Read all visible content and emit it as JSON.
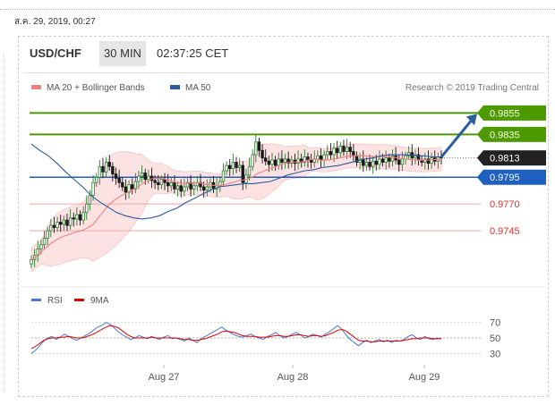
{
  "date_text": "ส.ค. 29, 2019, 00:27",
  "header": {
    "pair": "USD/CHF",
    "timeframe": "30 MIN",
    "clock": "02:37:25 CET"
  },
  "legend": {
    "ma20_label": "MA 20 + Bollinger Bands",
    "ma50_label": "MA 50",
    "research": "Research © 2019 Trading Central",
    "ma20_color": "#f08080",
    "ma50_color": "#2d5aa0"
  },
  "rsi_legend": {
    "rsi_label": "RSI",
    "ma_label": "9MA",
    "rsi_color": "#4a78d0",
    "ma_color": "#dd0000"
  },
  "colors": {
    "up": "#2e7d32",
    "down": "#1a1a1a",
    "green_level": "#4c9a00",
    "blue_level": "#1f5fbf",
    "red_level": "#e03030",
    "current": "#222222",
    "arrow": "#2a5ea0"
  },
  "chart_data": [
    {
      "type": "candlestick",
      "title": "USD/CHF 30 MIN",
      "x_labels": [
        "Aug 27",
        "Aug 28",
        "Aug 29"
      ],
      "ylim": [
        0.97,
        0.9862
      ],
      "levels": [
        {
          "value": 0.9855,
          "label": "0.9855",
          "kind": "resistance"
        },
        {
          "value": 0.9835,
          "label": "0.9835",
          "kind": "resistance"
        },
        {
          "value": 0.9813,
          "label": "0.9813",
          "kind": "current"
        },
        {
          "value": 0.9795,
          "label": "0.9795",
          "kind": "pivot"
        },
        {
          "value": 0.977,
          "label": "0.9770",
          "kind": "support"
        },
        {
          "value": 0.9745,
          "label": "0.9745",
          "kind": "support"
        }
      ],
      "close": [
        0.9718,
        0.9722,
        0.9728,
        0.9732,
        0.9738,
        0.9745,
        0.975,
        0.9748,
        0.9753,
        0.9751,
        0.9755,
        0.975,
        0.9757,
        0.9756,
        0.976,
        0.9755,
        0.9762,
        0.977,
        0.9778,
        0.979,
        0.9795,
        0.9805,
        0.98,
        0.9809,
        0.9805,
        0.9798,
        0.9794,
        0.979,
        0.9786,
        0.9781,
        0.9788,
        0.9784,
        0.9791,
        0.9796,
        0.9799,
        0.9793,
        0.9796,
        0.9792,
        0.979,
        0.9788,
        0.9793,
        0.979,
        0.9787,
        0.979,
        0.9784,
        0.9787,
        0.9782,
        0.9786,
        0.979,
        0.9784,
        0.9787,
        0.979,
        0.9786,
        0.9783,
        0.9786,
        0.979,
        0.9784,
        0.9787,
        0.9791,
        0.9801,
        0.9806,
        0.9803,
        0.9809,
        0.9804,
        0.9806,
        0.979,
        0.9797,
        0.9805,
        0.9816,
        0.9828,
        0.982,
        0.9813,
        0.981,
        0.9807,
        0.9811,
        0.9806,
        0.9812,
        0.9809,
        0.9812,
        0.9808,
        0.9811,
        0.9808,
        0.9812,
        0.9809,
        0.9814,
        0.9811,
        0.9809,
        0.9812,
        0.9815,
        0.9811,
        0.9816,
        0.9819,
        0.9816,
        0.9822,
        0.9818,
        0.9824,
        0.9819,
        0.9823,
        0.9819,
        0.9815,
        0.9809,
        0.9812,
        0.9806,
        0.9809,
        0.9805,
        0.981,
        0.9807,
        0.9812,
        0.9809,
        0.9813,
        0.981,
        0.9815,
        0.9811,
        0.9807,
        0.9812,
        0.9815,
        0.9818,
        0.9813,
        0.9816,
        0.9811,
        0.9809,
        0.9812,
        0.9808,
        0.9813,
        0.981,
        0.9814,
        0.9813
      ],
      "ma50": [
        0.9826,
        0.982,
        0.9815,
        0.9808,
        0.98,
        0.9793,
        0.9786,
        0.9778,
        0.9772,
        0.9767,
        0.9762,
        0.9759,
        0.9757,
        0.9756,
        0.9757,
        0.9759,
        0.9763,
        0.9766,
        0.9771,
        0.9775,
        0.9779,
        0.9783,
        0.9786,
        0.9787,
        0.9788,
        0.9789,
        0.9789,
        0.979,
        0.9791,
        0.9794,
        0.9797,
        0.9799,
        0.9801,
        0.9802,
        0.9804,
        0.9805,
        0.9806,
        0.9808,
        0.981,
        0.9812,
        0.9813,
        0.9815,
        0.9816,
        0.9816,
        0.9816,
        0.9815,
        0.9815,
        0.9814,
        0.9814
      ],
      "rsi_ylim": [
        20,
        80
      ],
      "rsi_ticks": [
        70,
        50,
        30
      ],
      "rsi": [
        30,
        34,
        40,
        46,
        50,
        52,
        48,
        51,
        55,
        52,
        49,
        47,
        50,
        53,
        56,
        60,
        64,
        66,
        70,
        68,
        63,
        58,
        54,
        51,
        48,
        50,
        53,
        51,
        49,
        52,
        50,
        48,
        51,
        53,
        49,
        50,
        48,
        46,
        50,
        47,
        44,
        49,
        52,
        55,
        58,
        61,
        64,
        60,
        57,
        54,
        52,
        51,
        53,
        55,
        52,
        50,
        48,
        52,
        54,
        57,
        53,
        50,
        52,
        55,
        57,
        54,
        50,
        52,
        55,
        53,
        51,
        55,
        58,
        62,
        66,
        61,
        54,
        48,
        44,
        40,
        44,
        47,
        44,
        46,
        48,
        45,
        47,
        44,
        47,
        46,
        48,
        52,
        54,
        50,
        48,
        52,
        49,
        48,
        50,
        49
      ],
      "rsi_ma": [
        36,
        39,
        43,
        47,
        49,
        50,
        50,
        51,
        51,
        52,
        51,
        50,
        50,
        51,
        53,
        55,
        58,
        61,
        64,
        66,
        65,
        63,
        59,
        55,
        52,
        50,
        50,
        50,
        50,
        51,
        50,
        50,
        50,
        50,
        50,
        50,
        49,
        48,
        48,
        47,
        47,
        48,
        49,
        51,
        53,
        55,
        58,
        59,
        58,
        57,
        55,
        53,
        52,
        52,
        52,
        51,
        51,
        51,
        52,
        53,
        53,
        52,
        52,
        53,
        54,
        54,
        53,
        52,
        53,
        53,
        52,
        53,
        55,
        57,
        60,
        61,
        59,
        55,
        51,
        47,
        46,
        46,
        45,
        45,
        46,
        46,
        46,
        46,
        46,
        46,
        47,
        48,
        49,
        49,
        50,
        50,
        50,
        49,
        49,
        49
      ],
      "rsi_legend": [
        "RSI",
        "9MA"
      ]
    }
  ]
}
